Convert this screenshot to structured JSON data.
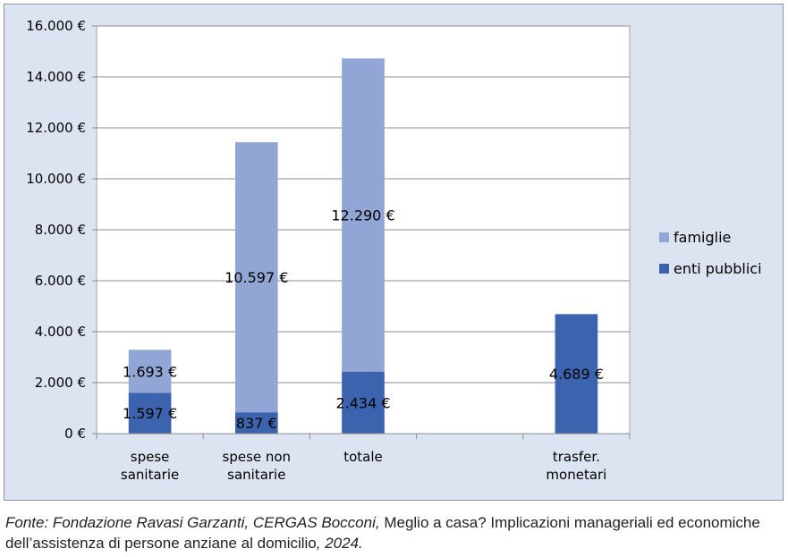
{
  "chart_data": {
    "type": "bar",
    "stacked": true,
    "categories": [
      [
        "spese",
        "sanitarie"
      ],
      [
        "spese non",
        "sanitarie"
      ],
      [
        "totale"
      ],
      [],
      [
        "trasfer.",
        "monetari"
      ]
    ],
    "series": [
      {
        "name": "enti pubblici",
        "color": "#3c64ae",
        "values": [
          1597,
          837,
          2434,
          0,
          4689
        ],
        "labels": [
          "1.597 €",
          "837 €",
          "2.434 €",
          "",
          "4.689 €"
        ]
      },
      {
        "name": "famiglie",
        "color": "#91a6d4",
        "values": [
          1693,
          10597,
          12290,
          0,
          0
        ],
        "labels": [
          "1.693 €",
          "10.597 €",
          "12.290 €",
          "",
          ""
        ]
      }
    ],
    "ylim": [
      0,
      16000
    ],
    "yticks": [
      0,
      2000,
      4000,
      6000,
      8000,
      10000,
      12000,
      14000,
      16000
    ],
    "ytick_labels": [
      "0 €",
      "2.000 €",
      "4.000 €",
      "6.000 €",
      "8.000 €",
      "10.000 €",
      "12.000 €",
      "14.000 €",
      "16.000 €"
    ],
    "grid": true,
    "legend": {
      "placement": "right",
      "entries": [
        "famiglie",
        "enti pubblici"
      ]
    },
    "background": "#dce3f1",
    "plot_background": "#ffffff"
  },
  "source": {
    "prefix": "Fonte: Fondazione Ravasi Garzanti, CERGAS Bocconi,",
    "title": "Meglio a casa? Implicazioni manageriali ed economiche dell’assistenza di persone anziane al domicilio",
    "suffix": ", 2024."
  }
}
